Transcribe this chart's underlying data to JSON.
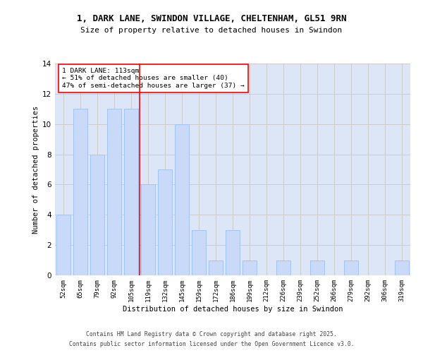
{
  "title": "1, DARK LANE, SWINDON VILLAGE, CHELTENHAM, GL51 9RN",
  "subtitle": "Size of property relative to detached houses in Swindon",
  "xlabel": "Distribution of detached houses by size in Swindon",
  "ylabel": "Number of detached properties",
  "bar_labels": [
    "52sqm",
    "65sqm",
    "79sqm",
    "92sqm",
    "105sqm",
    "119sqm",
    "132sqm",
    "145sqm",
    "159sqm",
    "172sqm",
    "186sqm",
    "199sqm",
    "212sqm",
    "226sqm",
    "239sqm",
    "252sqm",
    "266sqm",
    "279sqm",
    "292sqm",
    "306sqm",
    "319sqm"
  ],
  "bar_values": [
    4,
    11,
    8,
    11,
    11,
    6,
    7,
    10,
    3,
    1,
    3,
    1,
    0,
    1,
    0,
    1,
    0,
    1,
    0,
    0,
    1
  ],
  "bar_color": "#c9daf8",
  "bar_edgecolor": "#a4c2f4",
  "grid_color": "#cccccc",
  "background_color": "#dce6f7",
  "vline_x": 4.5,
  "vline_color": "red",
  "annotation_text": "1 DARK LANE: 113sqm\n← 51% of detached houses are smaller (40)\n47% of semi-detached houses are larger (37) →",
  "ylim": [
    0,
    14
  ],
  "yticks": [
    0,
    2,
    4,
    6,
    8,
    10,
    12,
    14
  ],
  "footer_line1": "Contains HM Land Registry data © Crown copyright and database right 2025.",
  "footer_line2": "Contains public sector information licensed under the Open Government Licence v3.0."
}
